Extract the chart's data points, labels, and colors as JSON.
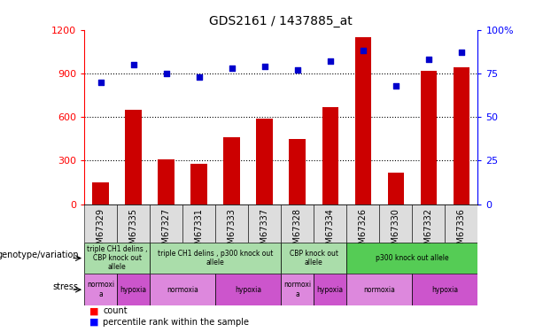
{
  "title": "GDS2161 / 1437885_at",
  "samples": [
    "GSM67329",
    "GSM67335",
    "GSM67327",
    "GSM67331",
    "GSM67333",
    "GSM67337",
    "GSM67328",
    "GSM67334",
    "GSM67326",
    "GSM67330",
    "GSM67332",
    "GSM67336"
  ],
  "counts": [
    150,
    650,
    310,
    280,
    460,
    590,
    450,
    670,
    1150,
    215,
    920,
    940
  ],
  "percentiles": [
    70,
    80,
    75,
    73,
    78,
    79,
    77,
    82,
    88,
    68,
    83,
    87
  ],
  "ylim_left": [
    0,
    1200
  ],
  "ylim_right": [
    0,
    100
  ],
  "yticks_left": [
    0,
    300,
    600,
    900,
    1200
  ],
  "yticks_right": [
    0,
    25,
    50,
    75,
    100
  ],
  "bar_color": "#cc0000",
  "dot_color": "#0000cc",
  "genotype_groups": [
    {
      "label": "triple CH1 delins ,\nCBP knock out\nallele",
      "start": 0,
      "end": 2,
      "color": "#aaddaa"
    },
    {
      "label": "triple CH1 delins , p300 knock out\nallele",
      "start": 2,
      "end": 6,
      "color": "#aaddaa"
    },
    {
      "label": "CBP knock out\nallele",
      "start": 6,
      "end": 8,
      "color": "#aaddaa"
    },
    {
      "label": "p300 knock out allele",
      "start": 8,
      "end": 12,
      "color": "#55cc55"
    }
  ],
  "stress_groups": [
    {
      "label": "normoxi\na",
      "start": 0,
      "end": 1,
      "color": "#dd88dd"
    },
    {
      "label": "hypoxia",
      "start": 1,
      "end": 2,
      "color": "#cc55cc"
    },
    {
      "label": "normoxia",
      "start": 2,
      "end": 4,
      "color": "#dd88dd"
    },
    {
      "label": "hypoxia",
      "start": 4,
      "end": 6,
      "color": "#cc55cc"
    },
    {
      "label": "normoxi\na",
      "start": 6,
      "end": 7,
      "color": "#dd88dd"
    },
    {
      "label": "hypoxia",
      "start": 7,
      "end": 8,
      "color": "#cc55cc"
    },
    {
      "label": "normoxia",
      "start": 8,
      "end": 10,
      "color": "#dd88dd"
    },
    {
      "label": "hypoxia",
      "start": 10,
      "end": 12,
      "color": "#cc55cc"
    }
  ],
  "xlabel_fontsize": 7,
  "title_fontsize": 10
}
